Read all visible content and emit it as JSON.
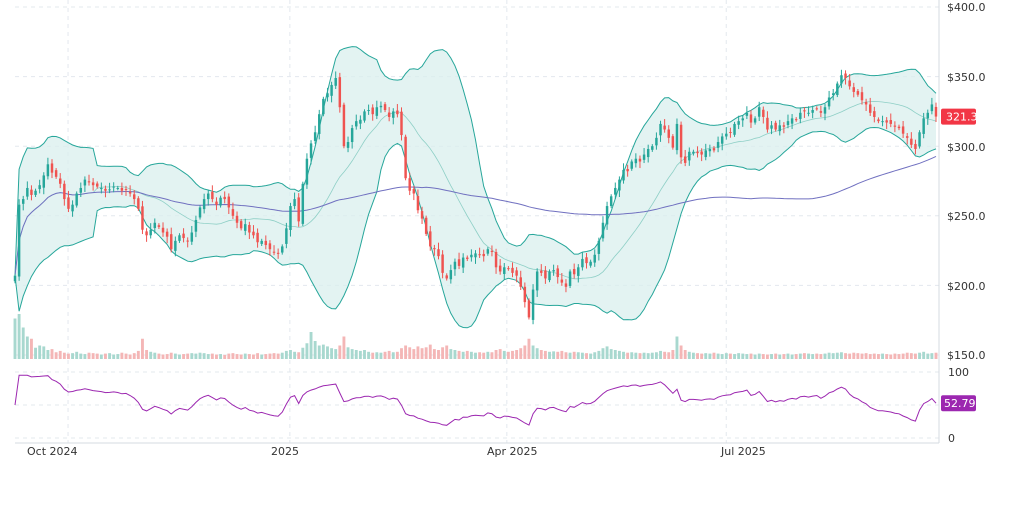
{
  "chart_data": {
    "type": "candlestick",
    "price_axis": {
      "ylim": [
        150,
        400
      ],
      "tick_labels": [
        "$400.0",
        "$350.0",
        "$300.0",
        "$250.0",
        "$200.0",
        "$150.0"
      ],
      "tick_values": [
        400,
        350,
        300,
        250,
        200,
        150
      ],
      "side": "right"
    },
    "x_axis": {
      "tick_labels": [
        "Oct 2024",
        "2025",
        "Apr 2025",
        "Jul 2025"
      ],
      "tick_dates": [
        "2024-10-01",
        "2025-01-01",
        "2025-04-01",
        "2025-07-01"
      ],
      "start_date": "2024-09-09",
      "end_date": "2025-09-26"
    },
    "last_price": {
      "value": 321.3,
      "label": "321.3",
      "color": "#f23645"
    },
    "colors": {
      "up": "#26a69a",
      "down": "#ef5350",
      "bollinger_band": "#26a69a",
      "bollinger_fill": "#d9efee",
      "ma_slow": "#7070c0",
      "rsi_line": "#9c27b0",
      "rsi_badge": "#9c27b0",
      "grid": "#e3e8ee"
    },
    "closes": [
      207.0,
      258.0,
      262.0,
      270.0,
      265.0,
      268.0,
      272.0,
      279.0,
      287.0,
      281.0,
      278.0,
      273.0,
      262.0,
      255.0,
      258.0,
      266.0,
      270.0,
      276.0,
      274.0,
      272.0,
      271.0,
      270.0,
      268.0,
      269.0,
      271.0,
      270.0,
      268.0,
      269.0,
      266.0,
      262.0,
      255.0,
      240.0,
      236.0,
      240.0,
      245.0,
      242.0,
      238.0,
      235.0,
      226.0,
      232.0,
      236.0,
      234.0,
      232.0,
      238.0,
      247.0,
      256.0,
      262.0,
      266.0,
      262.0,
      258.0,
      263.0,
      262.0,
      256.0,
      250.0,
      245.0,
      241.0,
      244.0,
      238.0,
      236.0,
      231.0,
      232.0,
      229.0,
      226.0,
      224.0,
      223.0,
      228.0,
      241.0,
      257.0,
      262.0,
      246.0,
      273.0,
      291.0,
      302.0,
      310.0,
      323.0,
      334.0,
      338.0,
      344.0,
      349.0,
      328.0,
      300.0,
      303.0,
      313.0,
      318.0,
      319.0,
      325.0,
      326.0,
      323.0,
      328.0,
      329.0,
      326.0,
      321.0,
      325.0,
      323.0,
      308.0,
      277.0,
      268.0,
      266.0,
      254.0,
      248.0,
      237.0,
      228.0,
      226.0,
      221.0,
      209.0,
      205.0,
      211.0,
      217.0,
      214.0,
      220.0,
      219.0,
      222.0,
      223.0,
      222.0,
      221.0,
      226.0,
      224.0,
      213.0,
      210.0,
      213.0,
      212.0,
      209.0,
      207.0,
      199.0,
      188.0,
      177.0,
      197.0,
      210.0,
      209.0,
      205.0,
      210.0,
      211.0,
      206.0,
      202.0,
      199.0,
      210.0,
      208.0,
      213.0,
      219.0,
      216.0,
      217.0,
      222.0,
      232.0,
      245.0,
      257.0,
      264.0,
      270.0,
      276.0,
      283.0,
      282.0,
      289.0,
      291.0,
      289.0,
      294.0,
      298.0,
      300.0,
      306.0,
      316.0,
      312.0,
      306.0,
      299.0,
      316.0,
      292.0,
      288.0,
      296.0,
      296.0,
      295.0,
      294.0,
      297.0,
      298.0,
      297.0,
      303.0,
      307.0,
      309.0,
      310.0,
      316.0,
      318.0,
      320.0,
      324.0,
      317.0,
      320.0,
      328.0,
      321.0,
      312.0,
      315.0,
      312.0,
      315.0,
      314.0,
      318.0,
      320.0,
      319.0,
      324.0,
      325.0,
      324.0,
      326.0,
      327.0,
      324.0,
      328.0,
      335.0,
      338.0,
      345.0,
      351.0,
      349.0,
      343.0,
      339.0,
      337.0,
      333.0,
      330.0,
      324.0,
      321.0,
      318.0,
      318.0,
      317.0,
      316.0,
      314.0,
      313.0,
      309.0,
      306.0,
      301.0,
      298.0,
      310.0,
      320.0,
      324.0,
      330.0,
      321.3
    ],
    "volumes": [
      0.9,
      1.0,
      0.7,
      0.5,
      0.45,
      0.25,
      0.3,
      0.28,
      0.2,
      0.22,
      0.15,
      0.18,
      0.14,
      0.12,
      0.13,
      0.16,
      0.12,
      0.11,
      0.14,
      0.13,
      0.12,
      0.1,
      0.12,
      0.13,
      0.1,
      0.11,
      0.14,
      0.12,
      0.1,
      0.13,
      0.18,
      0.45,
      0.2,
      0.16,
      0.14,
      0.12,
      0.1,
      0.11,
      0.14,
      0.12,
      0.1,
      0.11,
      0.12,
      0.13,
      0.12,
      0.14,
      0.13,
      0.11,
      0.12,
      0.1,
      0.11,
      0.09,
      0.12,
      0.13,
      0.11,
      0.1,
      0.12,
      0.11,
      0.1,
      0.13,
      0.1,
      0.11,
      0.12,
      0.13,
      0.12,
      0.14,
      0.18,
      0.2,
      0.16,
      0.15,
      0.25,
      0.35,
      0.6,
      0.4,
      0.3,
      0.32,
      0.28,
      0.24,
      0.22,
      0.3,
      0.5,
      0.26,
      0.22,
      0.2,
      0.18,
      0.2,
      0.16,
      0.14,
      0.15,
      0.14,
      0.16,
      0.18,
      0.15,
      0.16,
      0.24,
      0.3,
      0.26,
      0.22,
      0.28,
      0.24,
      0.26,
      0.32,
      0.22,
      0.2,
      0.26,
      0.3,
      0.22,
      0.2,
      0.18,
      0.16,
      0.18,
      0.16,
      0.14,
      0.15,
      0.14,
      0.16,
      0.15,
      0.2,
      0.22,
      0.18,
      0.16,
      0.18,
      0.2,
      0.24,
      0.3,
      0.45,
      0.3,
      0.24,
      0.2,
      0.18,
      0.16,
      0.17,
      0.16,
      0.18,
      0.15,
      0.14,
      0.16,
      0.15,
      0.14,
      0.13,
      0.12,
      0.15,
      0.18,
      0.24,
      0.28,
      0.22,
      0.2,
      0.18,
      0.16,
      0.14,
      0.15,
      0.14,
      0.13,
      0.14,
      0.13,
      0.14,
      0.15,
      0.18,
      0.16,
      0.15,
      0.2,
      0.5,
      0.3,
      0.2,
      0.16,
      0.14,
      0.13,
      0.12,
      0.13,
      0.12,
      0.14,
      0.12,
      0.11,
      0.13,
      0.12,
      0.11,
      0.13,
      0.12,
      0.11,
      0.12,
      0.1,
      0.12,
      0.11,
      0.1,
      0.11,
      0.12,
      0.1,
      0.11,
      0.12,
      0.1,
      0.11,
      0.12,
      0.13,
      0.12,
      0.11,
      0.12,
      0.11,
      0.12,
      0.14,
      0.13,
      0.14,
      0.15,
      0.13,
      0.12,
      0.14,
      0.13,
      0.12,
      0.13,
      0.11,
      0.12,
      0.11,
      0.12,
      0.11,
      0.1,
      0.12,
      0.11,
      0.12,
      0.14,
      0.13,
      0.12,
      0.14,
      0.16,
      0.12,
      0.13,
      0.14
    ],
    "rsi": {
      "ylim": [
        0,
        100
      ],
      "tick_labels": [
        "100",
        "50",
        "0"
      ],
      "tick_values": [
        100,
        50,
        0
      ],
      "last_value": 52.79,
      "last_label": "52.79"
    }
  }
}
